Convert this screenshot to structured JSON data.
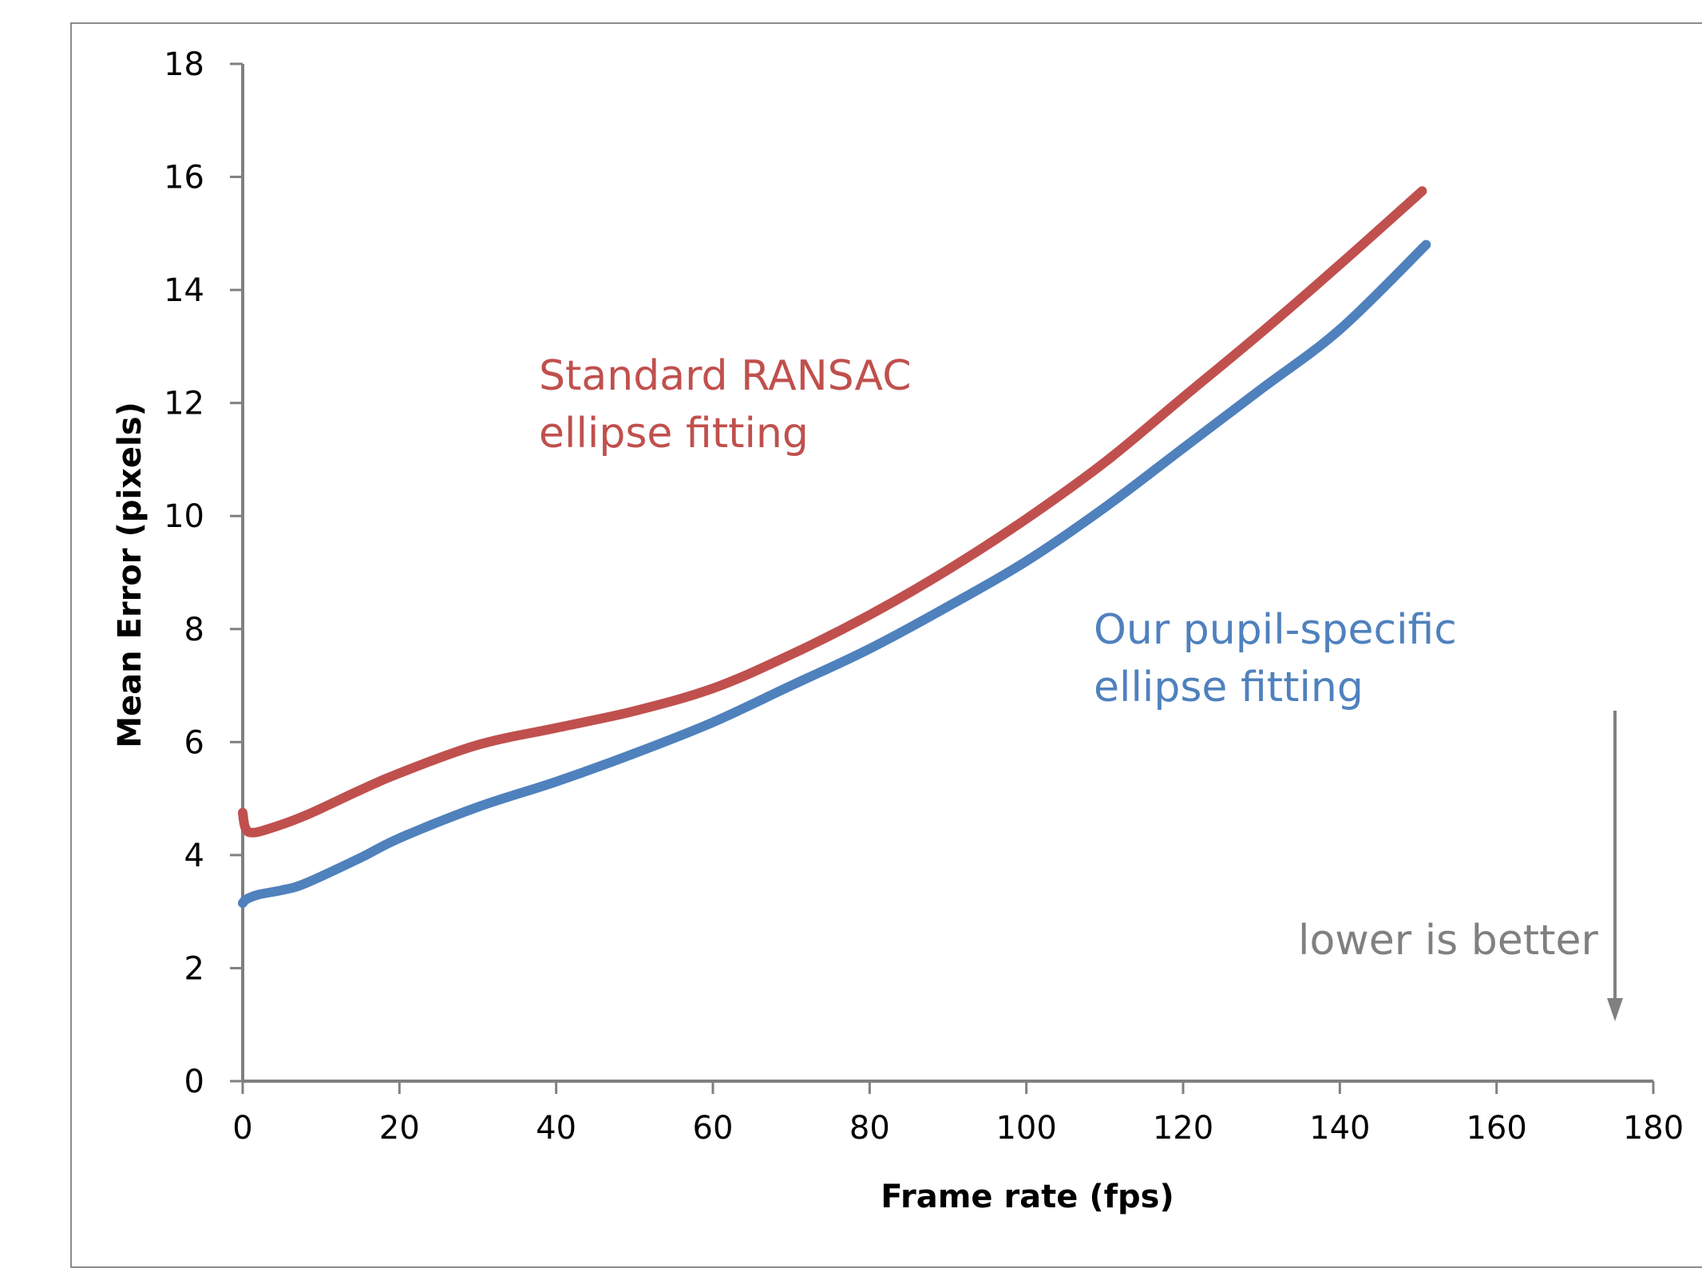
{
  "chart_data": {
    "type": "line",
    "xlabel": "Frame rate (fps)",
    "ylabel": "Mean Error (pixels)",
    "xlim": [
      0,
      180
    ],
    "ylim": [
      0,
      18
    ],
    "x_ticks": [
      "0",
      "20",
      "40",
      "60",
      "80",
      "100",
      "120",
      "140",
      "160",
      "180"
    ],
    "y_ticks": [
      "0",
      "2",
      "4",
      "6",
      "8",
      "10",
      "12",
      "14",
      "16",
      "18"
    ],
    "grid": false,
    "legend": "none",
    "series": [
      {
        "color": "#c0504d",
        "x": [
          0,
          0.3,
          1,
          3,
          8,
          15,
          20,
          30,
          40,
          50,
          60,
          70,
          80,
          90,
          100,
          110,
          120,
          130,
          140,
          150.5
        ],
        "y": [
          4.75,
          4.5,
          4.4,
          4.45,
          4.7,
          5.15,
          5.45,
          5.95,
          6.25,
          6.55,
          6.95,
          7.55,
          8.25,
          9.05,
          9.95,
          10.95,
          12.1,
          13.25,
          14.45,
          15.75
        ]
      },
      {
        "color": "#4f81bd",
        "x": [
          0,
          0.5,
          2,
          5,
          8,
          15,
          20,
          30,
          40,
          50,
          60,
          70,
          80,
          90,
          100,
          110,
          120,
          130,
          140,
          151
        ],
        "y": [
          3.15,
          3.22,
          3.3,
          3.38,
          3.5,
          3.95,
          4.3,
          4.85,
          5.3,
          5.8,
          6.35,
          7.0,
          7.65,
          8.4,
          9.2,
          10.15,
          11.2,
          12.25,
          13.3,
          14.8
        ]
      }
    ],
    "annotations": [
      {
        "lines": [
          "Standard RANSAC",
          "ellipse fitting"
        ],
        "color": "#c0504d"
      },
      {
        "lines": [
          "Our pupil-specific",
          "ellipse fitting"
        ],
        "color": "#4f81bd"
      },
      {
        "lines": [
          "lower is better"
        ],
        "color": "#808080"
      }
    ],
    "arrow_color": "#808080",
    "axis_color": "#808080"
  }
}
